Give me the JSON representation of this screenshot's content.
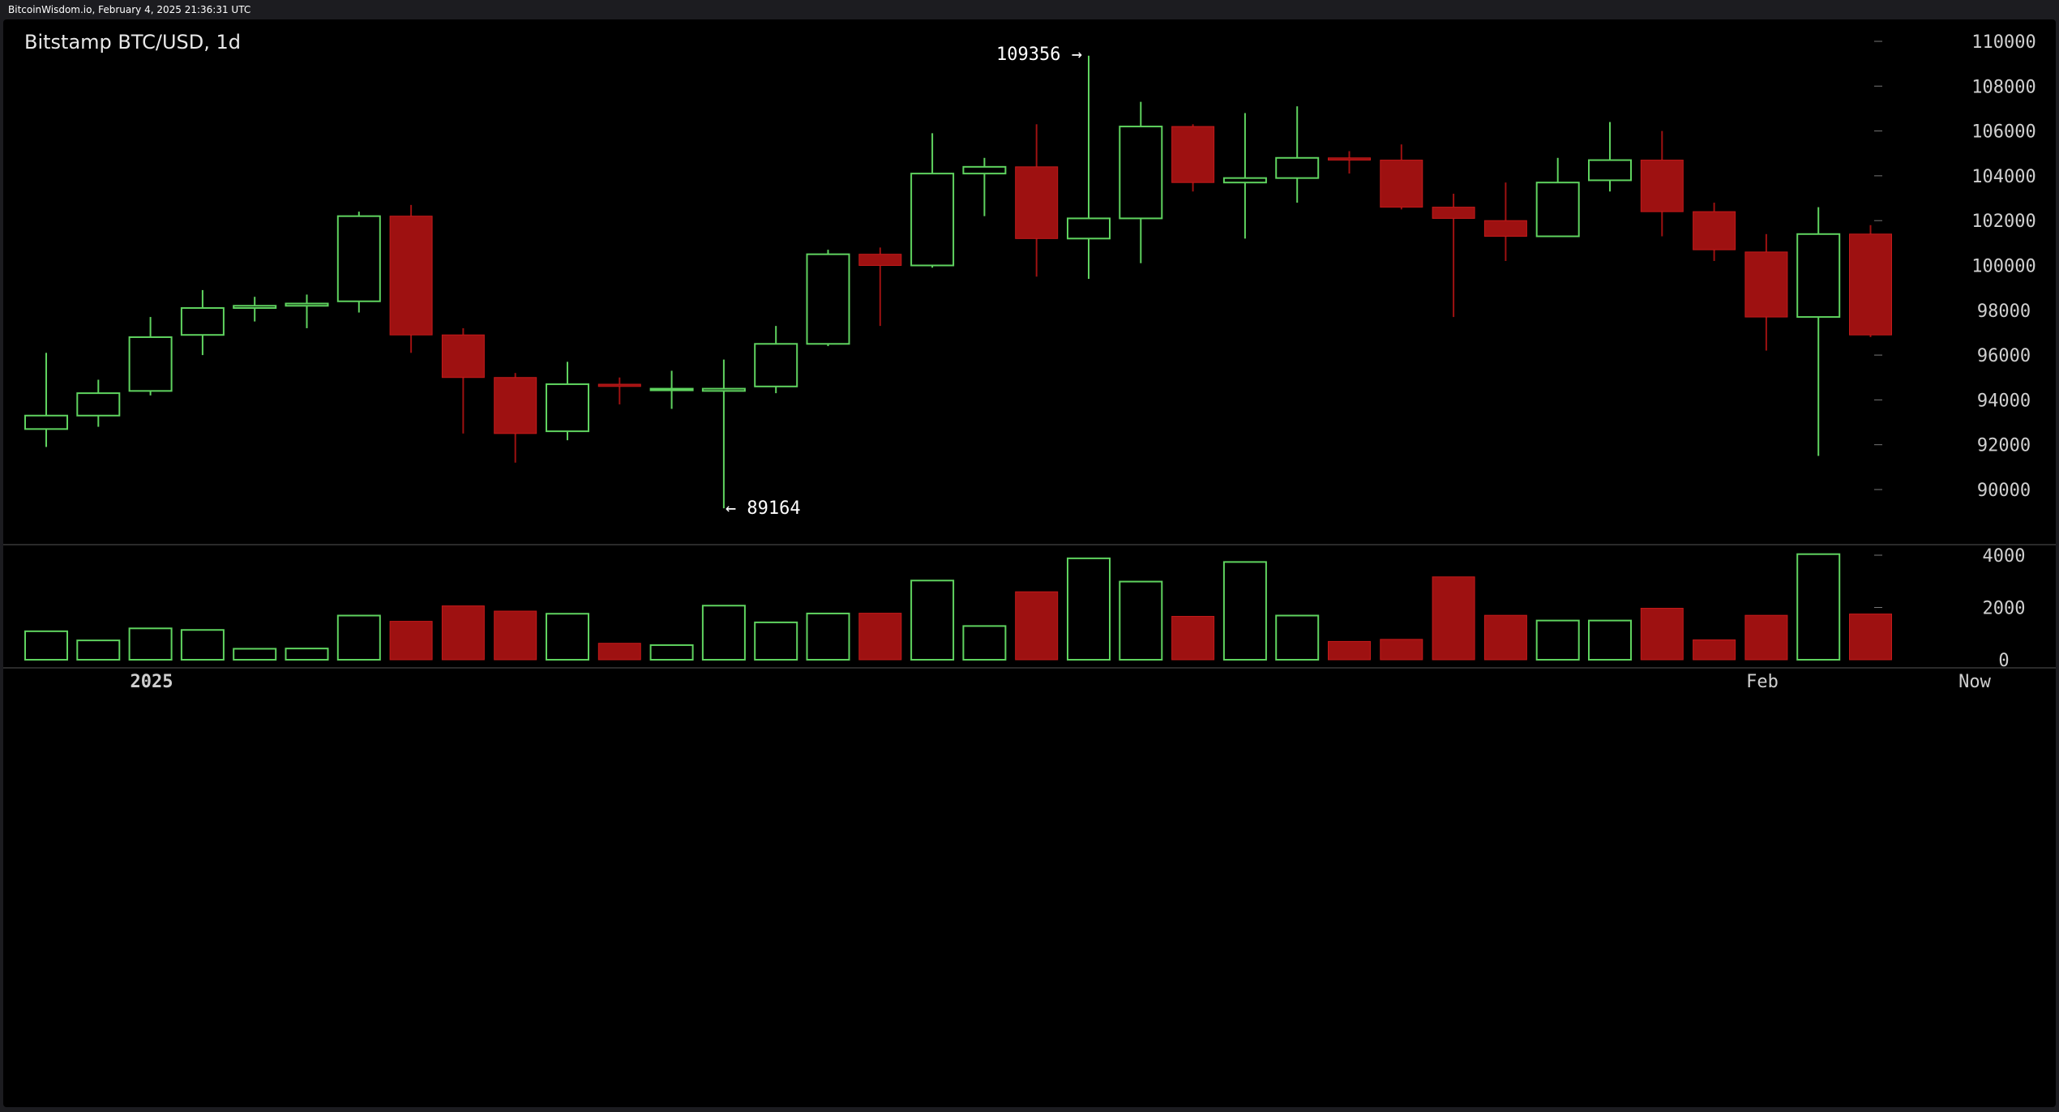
{
  "header": {
    "source_line": "BitcoinWisdom.io, February 4, 2025 21:36:31 UTC"
  },
  "chart_data": {
    "type": "candlestick",
    "title": "Bitstamp BTC/USD, 1d",
    "price_axis": {
      "ylim": [
        88500,
        110800
      ],
      "ticks": [
        90000,
        92000,
        94000,
        96000,
        98000,
        100000,
        102000,
        104000,
        106000,
        108000,
        110000
      ],
      "side": "right"
    },
    "volume_axis": {
      "ylim": [
        0,
        4200
      ],
      "ticks": [
        0,
        2000,
        4000
      ],
      "side": "right"
    },
    "x_labels": [
      {
        "text": "2025",
        "index": 2
      },
      {
        "text": "Feb",
        "index": 33
      },
      {
        "text": "Now",
        "index": 37
      }
    ],
    "annotations": [
      {
        "text": "109356 →",
        "value": 109356,
        "index": 20
      },
      {
        "text": "← 89164",
        "value": 89164,
        "index": 13
      }
    ],
    "up_color": "#5fd35f",
    "down_color": "#9e1111",
    "candles": [
      {
        "o": 92700,
        "h": 96100,
        "l": 91900,
        "c": 93300,
        "v": 1090
      },
      {
        "o": 93300,
        "h": 94900,
        "l": 92800,
        "c": 94300,
        "v": 740
      },
      {
        "o": 94400,
        "h": 97700,
        "l": 94200,
        "c": 96800,
        "v": 1200
      },
      {
        "o": 96900,
        "h": 98900,
        "l": 96000,
        "c": 98100,
        "v": 1140
      },
      {
        "o": 98100,
        "h": 98600,
        "l": 97500,
        "c": 98200,
        "v": 420
      },
      {
        "o": 98200,
        "h": 98700,
        "l": 97200,
        "c": 98300,
        "v": 430
      },
      {
        "o": 98400,
        "h": 102400,
        "l": 97900,
        "c": 102200,
        "v": 1690
      },
      {
        "o": 102200,
        "h": 102700,
        "l": 96100,
        "c": 96900,
        "v": 1470
      },
      {
        "o": 96900,
        "h": 97200,
        "l": 92500,
        "c": 95000,
        "v": 2060
      },
      {
        "o": 95000,
        "h": 95200,
        "l": 91200,
        "c": 92500,
        "v": 1860
      },
      {
        "o": 92600,
        "h": 95700,
        "l": 92200,
        "c": 94700,
        "v": 1760
      },
      {
        "o": 94700,
        "h": 95000,
        "l": 93800,
        "c": 94600,
        "v": 630
      },
      {
        "o": 94500,
        "h": 95300,
        "l": 93600,
        "c": 94500,
        "v": 560
      },
      {
        "o": 94400,
        "h": 95800,
        "l": 89164,
        "c": 94500,
        "v": 2070
      },
      {
        "o": 94600,
        "h": 97300,
        "l": 94300,
        "c": 96500,
        "v": 1430
      },
      {
        "o": 96500,
        "h": 100700,
        "l": 96400,
        "c": 100500,
        "v": 1770
      },
      {
        "o": 100500,
        "h": 100800,
        "l": 97300,
        "c": 100000,
        "v": 1780
      },
      {
        "o": 100000,
        "h": 105900,
        "l": 99900,
        "c": 104100,
        "v": 3030
      },
      {
        "o": 104100,
        "h": 104800,
        "l": 102200,
        "c": 104400,
        "v": 1290
      },
      {
        "o": 104400,
        "h": 106300,
        "l": 99500,
        "c": 101200,
        "v": 2600
      },
      {
        "o": 101200,
        "h": 109356,
        "l": 99400,
        "c": 102100,
        "v": 3880
      },
      {
        "o": 102100,
        "h": 107300,
        "l": 100100,
        "c": 106200,
        "v": 2990
      },
      {
        "o": 106200,
        "h": 106300,
        "l": 103300,
        "c": 103700,
        "v": 1660
      },
      {
        "o": 103700,
        "h": 106800,
        "l": 101200,
        "c": 103900,
        "v": 3740
      },
      {
        "o": 103900,
        "h": 107100,
        "l": 102800,
        "c": 104800,
        "v": 1690
      },
      {
        "o": 104800,
        "h": 105100,
        "l": 104100,
        "c": 104700,
        "v": 700
      },
      {
        "o": 104700,
        "h": 105400,
        "l": 102500,
        "c": 102600,
        "v": 780
      },
      {
        "o": 102600,
        "h": 103200,
        "l": 97700,
        "c": 102100,
        "v": 3170
      },
      {
        "o": 102000,
        "h": 103700,
        "l": 100200,
        "c": 101300,
        "v": 1700
      },
      {
        "o": 101300,
        "h": 104800,
        "l": 101300,
        "c": 103700,
        "v": 1500
      },
      {
        "o": 103800,
        "h": 106400,
        "l": 103300,
        "c": 104700,
        "v": 1500
      },
      {
        "o": 104700,
        "h": 106000,
        "l": 101300,
        "c": 102400,
        "v": 1970
      },
      {
        "o": 102400,
        "h": 102800,
        "l": 100200,
        "c": 100700,
        "v": 760
      },
      {
        "o": 100600,
        "h": 101400,
        "l": 96200,
        "c": 97700,
        "v": 1700
      },
      {
        "o": 97700,
        "h": 102600,
        "l": 91500,
        "c": 101400,
        "v": 4040
      },
      {
        "o": 101400,
        "h": 101800,
        "l": 96800,
        "c": 96900,
        "v": 1750
      }
    ]
  }
}
